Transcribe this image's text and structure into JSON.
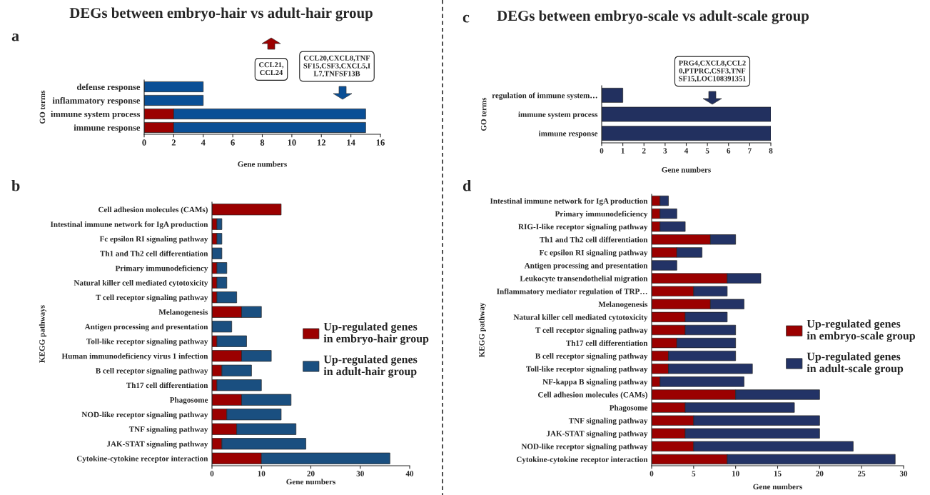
{
  "chart_data": [
    {
      "type": "bar",
      "orientation": "horizontal",
      "stacked": true,
      "title": "DEGs between embryo-hair vs adult-hair group",
      "xlabel": "Gene numbers",
      "ylabel": "GO terms",
      "categories": [
        "defense response",
        "inflammatory response",
        "immune system process",
        "immune response"
      ],
      "series": [
        {
          "color": "#9b0000",
          "values": [
            null,
            null,
            2,
            2
          ]
        },
        {
          "color": "#0a4f96",
          "values": [
            4,
            4,
            13,
            13
          ]
        }
      ],
      "xlim": [
        0,
        16
      ],
      "xticks": [
        0,
        2,
        4,
        6,
        8,
        10,
        12,
        14,
        16
      ],
      "grid": false,
      "legend": false,
      "annotations": [
        "a",
        "CCL21,\nCCL24",
        "CCL20,CXCL8,TNF\nSF15,CSF3,CXCL5,I\nL7,TNFSF13B"
      ]
    },
    {
      "type": "bar",
      "orientation": "horizontal",
      "stacked": true,
      "xlabel": "Gene numbers",
      "ylabel": "KEGG pathways",
      "categories": [
        "Cell adhesion molecules (CAMs)",
        "Intestinal immune network for IgA production",
        "Fc epsilon RI signaling pathway",
        "Th1 and Th2 cell differentiation",
        "Primary immunodeficiency",
        "Natural killer cell mediated cytotoxicity",
        "T cell receptor signaling pathway",
        "Melanogenesis",
        "Antigen processing and presentation",
        "Toll-like receptor signaling pathway",
        "Human immunodeficiency virus 1 infection",
        "B cell receptor signaling pathway",
        "Th17 cell differentiation",
        "Phagosome",
        "NOD-like receptor signaling pathway",
        "TNF signaling pathway",
        "JAK-STAT signaling pathway",
        "Cytokine-cytokine receptor interaction"
      ],
      "series": [
        {
          "name": "Up-regulated genes\nin embryo-hair group",
          "color": "#9b0000",
          "values": [
            14,
            1,
            1,
            null,
            1,
            1,
            1,
            6,
            null,
            1,
            6,
            2,
            1,
            6,
            3,
            5,
            2,
            10
          ]
        },
        {
          "name": "Up-regulated genes\nin adult-hair group",
          "color": "#1a4f80",
          "values": [
            null,
            1,
            1,
            2,
            2,
            2,
            4,
            4,
            4,
            6,
            6,
            6,
            9,
            10,
            11,
            12,
            17,
            26
          ]
        }
      ],
      "xlim": [
        0,
        40
      ],
      "xticks": [
        0,
        10,
        20,
        30,
        40
      ],
      "grid": false,
      "legend": "right",
      "annotations": [
        "b"
      ]
    },
    {
      "type": "bar",
      "orientation": "horizontal",
      "title": "DEGs between embryo-scale vs adult-scale group",
      "xlabel": "Gene numbers",
      "ylabel": "GO terms",
      "categories": [
        "regulation of immune system…",
        "immune system process",
        "immune response"
      ],
      "series": [
        {
          "color": "#22305f",
          "values": [
            1,
            8,
            8
          ]
        }
      ],
      "xlim": [
        0,
        8
      ],
      "xticks": [
        0,
        1,
        2,
        3,
        4,
        5,
        6,
        7,
        8
      ],
      "grid": false,
      "legend": false,
      "annotations": [
        "c",
        "PRG4,CXCL8,CCL2\n0,PTPRC,CSF3,TNF\nSF15,LOC108391351"
      ]
    },
    {
      "type": "bar",
      "orientation": "horizontal",
      "stacked": true,
      "xlabel": "Gene numbers",
      "ylabel": "KEGG pathway",
      "categories": [
        "Intestinal immune network for IgA production",
        "Primary immunodeficiency",
        "RIG-I-like receptor signaling pathway",
        "Th1 and Th2 cell differentiation",
        "Fc epsilon RI signaling pathway",
        "Antigen processing and presentation",
        "Leukocyte transendothelial migration",
        "Inflammatory mediator regulation of TRP…",
        "Melanogenesis",
        "Natural killer cell mediated cytotoxicity",
        "T cell receptor signaling pathway",
        "Th17 cell differentiation",
        "B cell receptor signaling pathway",
        "Toll-like receptor signaling pathway",
        "NF-kappa B signaling pathway",
        "Cell adhesion molecules (CAMs)",
        "Phagosome",
        "TNF signaling pathway",
        "JAK-STAT signaling pathway",
        "NOD-like receptor signaling pathway",
        "Cytokine-cytokine receptor interaction"
      ],
      "series": [
        {
          "name": "Up-regulated genes\nin embryo-scale group",
          "color": "#9b0000",
          "values": [
            1,
            1,
            1,
            7,
            3,
            null,
            9,
            5,
            7,
            4,
            4,
            3,
            2,
            2,
            1,
            10,
            4,
            5,
            4,
            5,
            9
          ]
        },
        {
          "name": "Up-regulated genes\nin adult-scale group",
          "color": "#233366",
          "values": [
            1,
            2,
            3,
            3,
            3,
            3,
            4,
            4,
            4,
            5,
            6,
            7,
            8,
            10,
            10,
            10,
            13,
            15,
            16,
            19,
            20
          ]
        }
      ],
      "xlim": [
        0,
        30
      ],
      "xticks": [
        0,
        5,
        10,
        15,
        20,
        25,
        30
      ],
      "grid": false,
      "legend": "right",
      "annotations": [
        "d"
      ]
    }
  ]
}
